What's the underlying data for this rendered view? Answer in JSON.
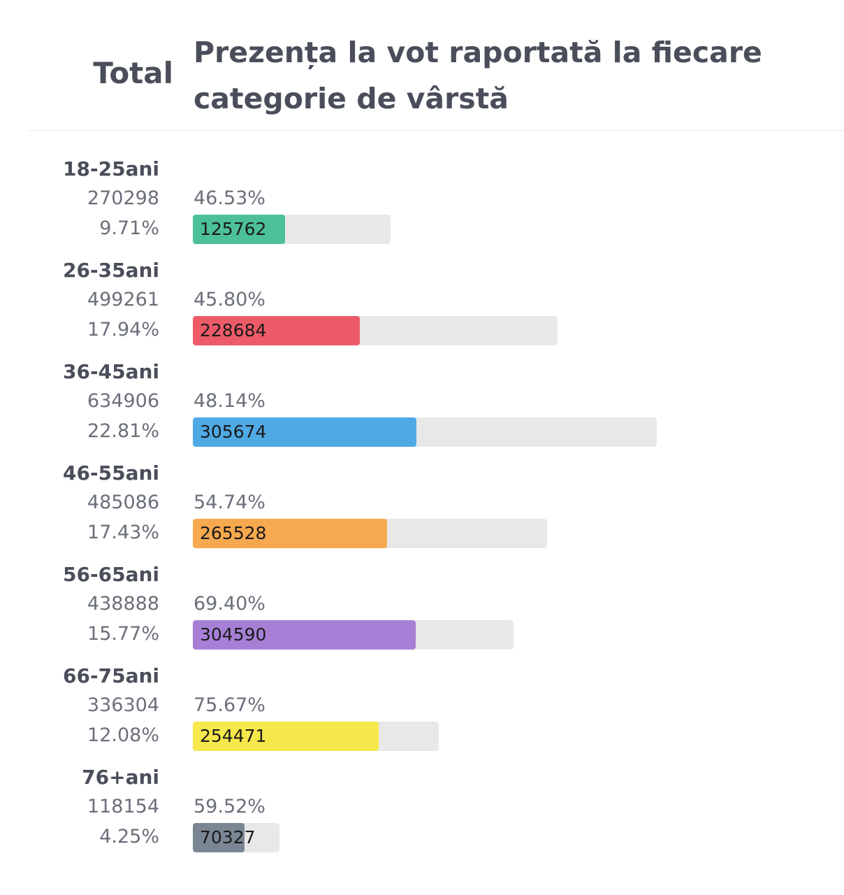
{
  "header": {
    "total_label": "Total",
    "title": "Prezența la vot raportată la fiecare categorie de vârstă"
  },
  "chart_data": {
    "type": "bar",
    "orientation": "horizontal",
    "title": "Prezența la vot raportată la fiecare categorie de vârstă",
    "categories": [
      "18-25ani",
      "26-35ani",
      "36-45ani",
      "46-55ani",
      "56-65ani",
      "66-75ani",
      "76+ani"
    ],
    "groups": [
      {
        "age": "18-25ani",
        "population": "270298",
        "population_share": "9.71%",
        "turnout": "46.53%",
        "voters": "125762",
        "voters_value": 125762,
        "population_value": 270298,
        "color": "#4cc09a"
      },
      {
        "age": "26-35ani",
        "population": "499261",
        "population_share": "17.94%",
        "turnout": "45.80%",
        "voters": "228684",
        "voters_value": 228684,
        "population_value": 499261,
        "color": "#ee5b68"
      },
      {
        "age": "36-45ani",
        "population": "634906",
        "population_share": "22.81%",
        "turnout": "48.14%",
        "voters": "305674",
        "voters_value": 305674,
        "population_value": 634906,
        "color": "#4fa9e4"
      },
      {
        "age": "46-55ani",
        "population": "485086",
        "population_share": "17.43%",
        "turnout": "54.74%",
        "voters": "265528",
        "voters_value": 265528,
        "population_value": 485086,
        "color": "#f6a94f"
      },
      {
        "age": "56-65ani",
        "population": "438888",
        "population_share": "15.77%",
        "turnout": "69.40%",
        "voters": "304590",
        "voters_value": 304590,
        "population_value": 438888,
        "color": "#a77fd6"
      },
      {
        "age": "66-75ani",
        "population": "336304",
        "population_share": "12.08%",
        "turnout": "75.67%",
        "voters": "254471",
        "voters_value": 254471,
        "population_value": 336304,
        "color": "#f6e84b"
      },
      {
        "age": "76+ani",
        "population": "118154",
        "population_share": "4.25%",
        "turnout": "59.52%",
        "voters": "70327",
        "voters_value": 70327,
        "population_value": 118154,
        "color": "#7a8694"
      }
    ],
    "track_color": "#e8e8e8"
  }
}
